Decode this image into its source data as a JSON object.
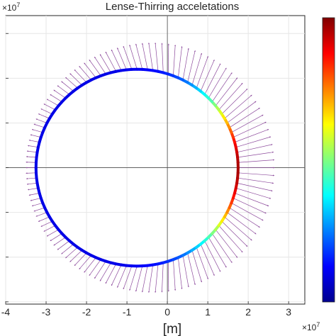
{
  "chart_data": {
    "type": "scatter",
    "title": "Lense-Thirring acceletations",
    "xlabel": "[m]",
    "ylabel": "",
    "x_exponent_base": "×10",
    "x_exponent_power": "7",
    "y_exponent_base": "×10",
    "y_exponent_power": "7",
    "xlim": [
      -4,
      3.4
    ],
    "ylim": [
      -3.05,
      3.4
    ],
    "x_ticks": [
      -4,
      -3,
      -2,
      -1,
      0,
      1,
      2,
      3
    ],
    "x_tick_labels": [
      "-4",
      "-3",
      "-2",
      "-1",
      "0",
      "1",
      "2",
      "3"
    ],
    "y_ticks": [
      -3,
      -2,
      -1,
      0,
      1,
      2,
      3
    ],
    "grid": true,
    "crosshair_through_origin": true,
    "colorbar": {
      "colormap": "jet",
      "position": "right",
      "tick_labels": []
    },
    "orbit": {
      "center_x": -0.75,
      "center_y": 0,
      "semi_major_axis": 2.5,
      "semi_minor_axis": 2.2,
      "unit_scale": 10000000.0,
      "coloring": "acceleration magnitude, maximum at perigee (x ≈ 1.75)"
    },
    "vectors": {
      "count": 120,
      "color": "#8c4a9c",
      "direction": "radial outward",
      "max_length_at_perigee": 0.9,
      "min_length_at_apogee": 0.25
    }
  }
}
